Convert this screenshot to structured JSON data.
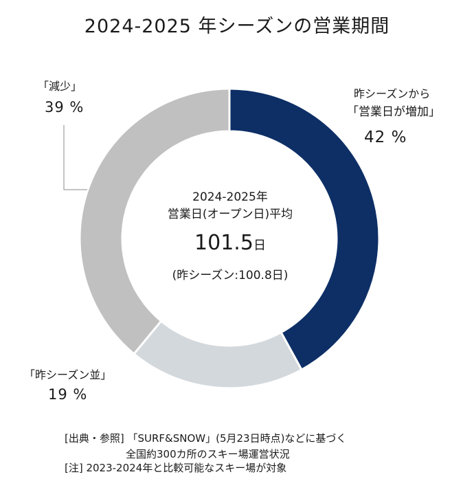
{
  "title": "2024-2025 年シーズンの営業期間",
  "center": {
    "season": "2024-2025年",
    "label": "営業日(オープン日)平均",
    "value": "101.5",
    "unit": "日",
    "previous": "(昨シーズン:100.8日)"
  },
  "segments": {
    "increase": {
      "line1": "昨シーズンから",
      "line2": "「営業日が増加」",
      "percent": "42 %"
    },
    "decrease": {
      "line1": "「減少」",
      "percent": "39 %"
    },
    "same": {
      "line1": "「昨シーズン並」",
      "percent": "19 %"
    }
  },
  "notes": {
    "line1": "[出典・参照] 「SURF&SNOW」(5月23日時点)などに基づく",
    "line2": "全国約300カ所のスキー場運営状況",
    "line3": "[注] 2023-2024年と比較可能なスキー場が対象"
  },
  "colors": {
    "increase": "#0d2f66",
    "same": "#d3d8dc",
    "decrease": "#c0c0c0",
    "text": "#1a1a1a",
    "leader": "#888888"
  },
  "chart_data": {
    "type": "pie",
    "title": "2024-2025 年シーズンの営業期間",
    "categories": [
      "昨シーズンから「営業日が増加」",
      "「昨シーズン並」",
      "「減少」"
    ],
    "values": [
      42,
      19,
      39
    ],
    "unit": "%",
    "center_value": 101.5,
    "center_unit": "日",
    "previous_value": 100.8
  }
}
